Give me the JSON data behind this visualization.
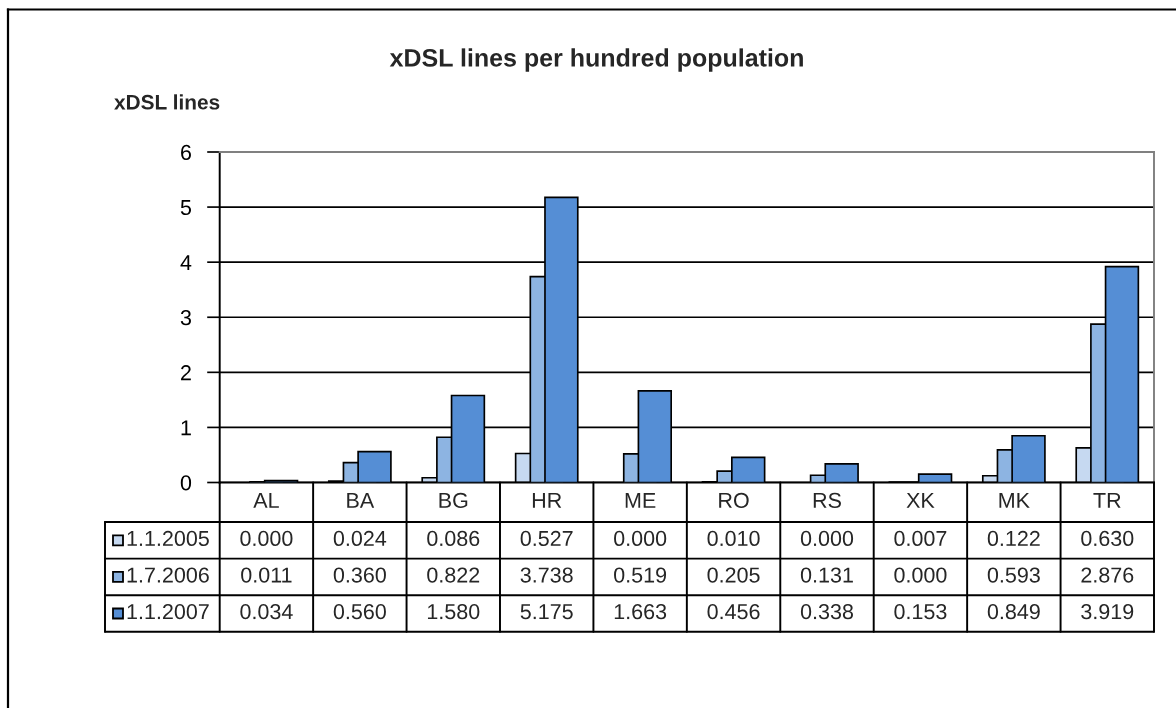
{
  "chart_data": {
    "type": "bar",
    "title": "xDSL lines per hundred population",
    "ylabel": "xDSL lines",
    "categories": [
      "AL",
      "BA",
      "BG",
      "HR",
      "ME",
      "RO",
      "RS",
      "XK",
      "MK",
      "TR"
    ],
    "series": [
      {
        "name": "1.1.2005",
        "color": "#c6d9f1",
        "values": [
          0,
          0.024,
          0.086,
          0.527,
          0,
          0.01,
          0,
          0.007,
          0.122,
          0.63
        ],
        "value_labels": [
          "0.000",
          "0.024",
          "0.086",
          "0.527",
          "0.000",
          "0.010",
          "0.000",
          "0.007",
          "0.122",
          "0.630"
        ]
      },
      {
        "name": "1.7.2006",
        "color": "#8db4e2",
        "values": [
          0.011,
          0.36,
          0.822,
          3.738,
          0.519,
          0.205,
          0.131,
          0,
          0.593,
          2.876
        ],
        "value_labels": [
          "0.011",
          "0.360",
          "0.822",
          "3.738",
          "0.519",
          "0.205",
          "0.131",
          "0.000",
          "0.593",
          "2.876"
        ]
      },
      {
        "name": "1.1.2007",
        "color": "#558ed5",
        "values": [
          0.034,
          0.56,
          1.58,
          5.175,
          1.663,
          0.456,
          0.338,
          0.153,
          0.849,
          3.919
        ],
        "value_labels": [
          "0.034",
          "0.560",
          "1.580",
          "5.175",
          "1.663",
          "0.456",
          "0.338",
          "0.153",
          "0.849",
          "3.919"
        ]
      }
    ],
    "ylim": [
      0,
      6
    ],
    "yticks": [
      0,
      1,
      2,
      3,
      4,
      5,
      6
    ],
    "grid": "y",
    "legend": "bottom left"
  }
}
